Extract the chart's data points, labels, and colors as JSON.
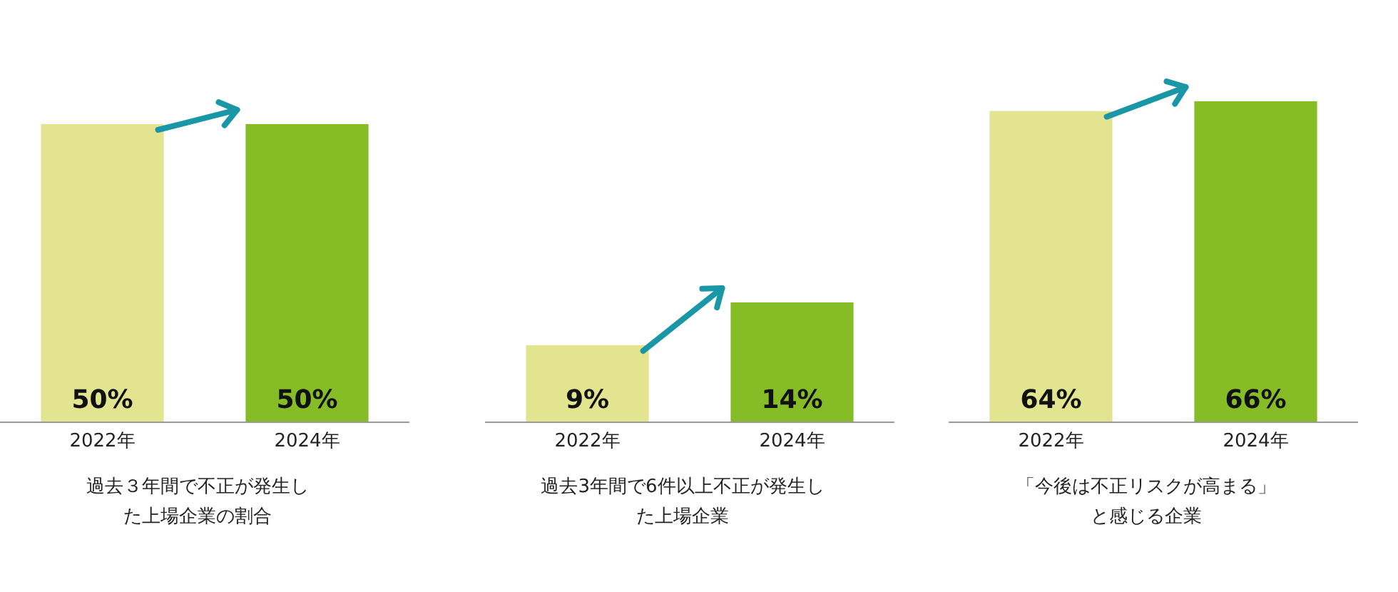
{
  "chart_data": [
    {
      "type": "bar",
      "categories": [
        "2022年",
        "2024年"
      ],
      "values": [
        50,
        50
      ],
      "colors": [
        "#e3e48f",
        "#86bc25"
      ],
      "value_labels": [
        "50%",
        "50%"
      ],
      "tick_labels": "x",
      "xlabel": "過去３年間で不正が発生した上場企業の割合"
    },
    {
      "type": "bar",
      "categories": [
        "2022年",
        "2024年"
      ],
      "values": [
        9,
        14
      ],
      "colors": [
        "#e3e48f",
        "#86bc25"
      ],
      "value_labels": [
        "9%",
        "14%"
      ],
      "tick_labels": "x",
      "xlabel": "過去3年間で6件以上不正が発生した上場企業"
    },
    {
      "type": "bar",
      "categories": [
        "2022年",
        "2024年"
      ],
      "values": [
        64,
        66
      ],
      "colors": [
        "#e3e48f",
        "#86bc25"
      ],
      "value_labels": [
        "64%",
        "66%"
      ],
      "tick_labels": "x",
      "xlabel": "「今後は不正リスクが高まる」と感じる企業"
    }
  ]
}
